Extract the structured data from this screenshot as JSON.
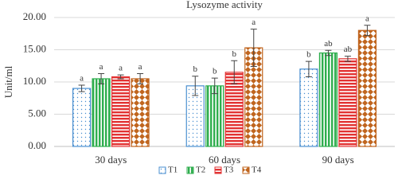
{
  "chart_data": {
    "type": "bar",
    "title": "Lysozyme activity",
    "y_label": "Unit/ml",
    "categories": [
      "30 days",
      "60 days",
      "90 days"
    ],
    "series": [
      {
        "name": "T1",
        "color": "#4a8fd0",
        "pattern": "dots",
        "values": [
          9.0,
          9.4,
          12.0
        ],
        "errors": [
          0.5,
          1.5,
          1.2
        ],
        "letters": [
          "a",
          "b",
          "b"
        ]
      },
      {
        "name": "T2",
        "color": "#2fae4e",
        "pattern": "vstripes",
        "values": [
          10.5,
          9.4,
          14.5
        ],
        "errors": [
          0.8,
          1.2,
          0.4
        ],
        "letters": [
          "a",
          "b",
          "ab"
        ]
      },
      {
        "name": "T3",
        "color": "#e23232",
        "pattern": "hstripes",
        "values": [
          10.8,
          11.5,
          13.6
        ],
        "errors": [
          0.3,
          1.8,
          0.4
        ],
        "letters": [
          "a",
          "b",
          "ab"
        ]
      },
      {
        "name": "T4",
        "color": "#c0651e",
        "pattern": "diamonds",
        "values": [
          10.5,
          15.3,
          18.0
        ],
        "errors": [
          0.8,
          2.9,
          0.8
        ],
        "letters": [
          "a",
          "a",
          "a"
        ]
      }
    ],
    "ylim": [
      0,
      20
    ],
    "yticks": [
      {
        "value": 0,
        "label": "0.00"
      },
      {
        "value": 5,
        "label": "5.00"
      },
      {
        "value": 10,
        "label": "10.00"
      },
      {
        "value": 15,
        "label": "15.00"
      },
      {
        "value": 20,
        "label": "20.00"
      }
    ],
    "grid": true,
    "legend": "bottom"
  }
}
